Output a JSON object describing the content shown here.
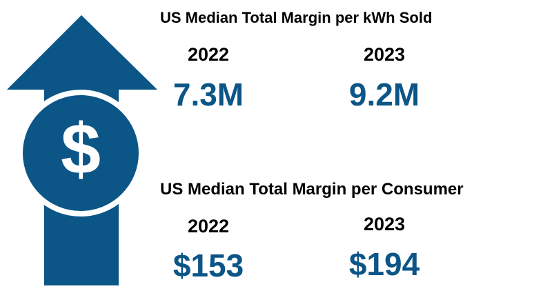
{
  "accent_color": "#0b5587",
  "graphic": {
    "arrow_icon": "arrow-up-icon",
    "coin_icon": "dollar-coin-icon",
    "coin_symbol": "$"
  },
  "kwh_section": {
    "title": "US Median Total Margin per kWh Sold",
    "stats": [
      {
        "year": "2022",
        "value": "7.3M"
      },
      {
        "year": "2023",
        "value": "9.2M"
      }
    ]
  },
  "consumer_section": {
    "title": "US Median Total Margin per Consumer",
    "stats": [
      {
        "year": "2022",
        "value": "$153"
      },
      {
        "year": "2023",
        "value": "$194"
      }
    ]
  }
}
